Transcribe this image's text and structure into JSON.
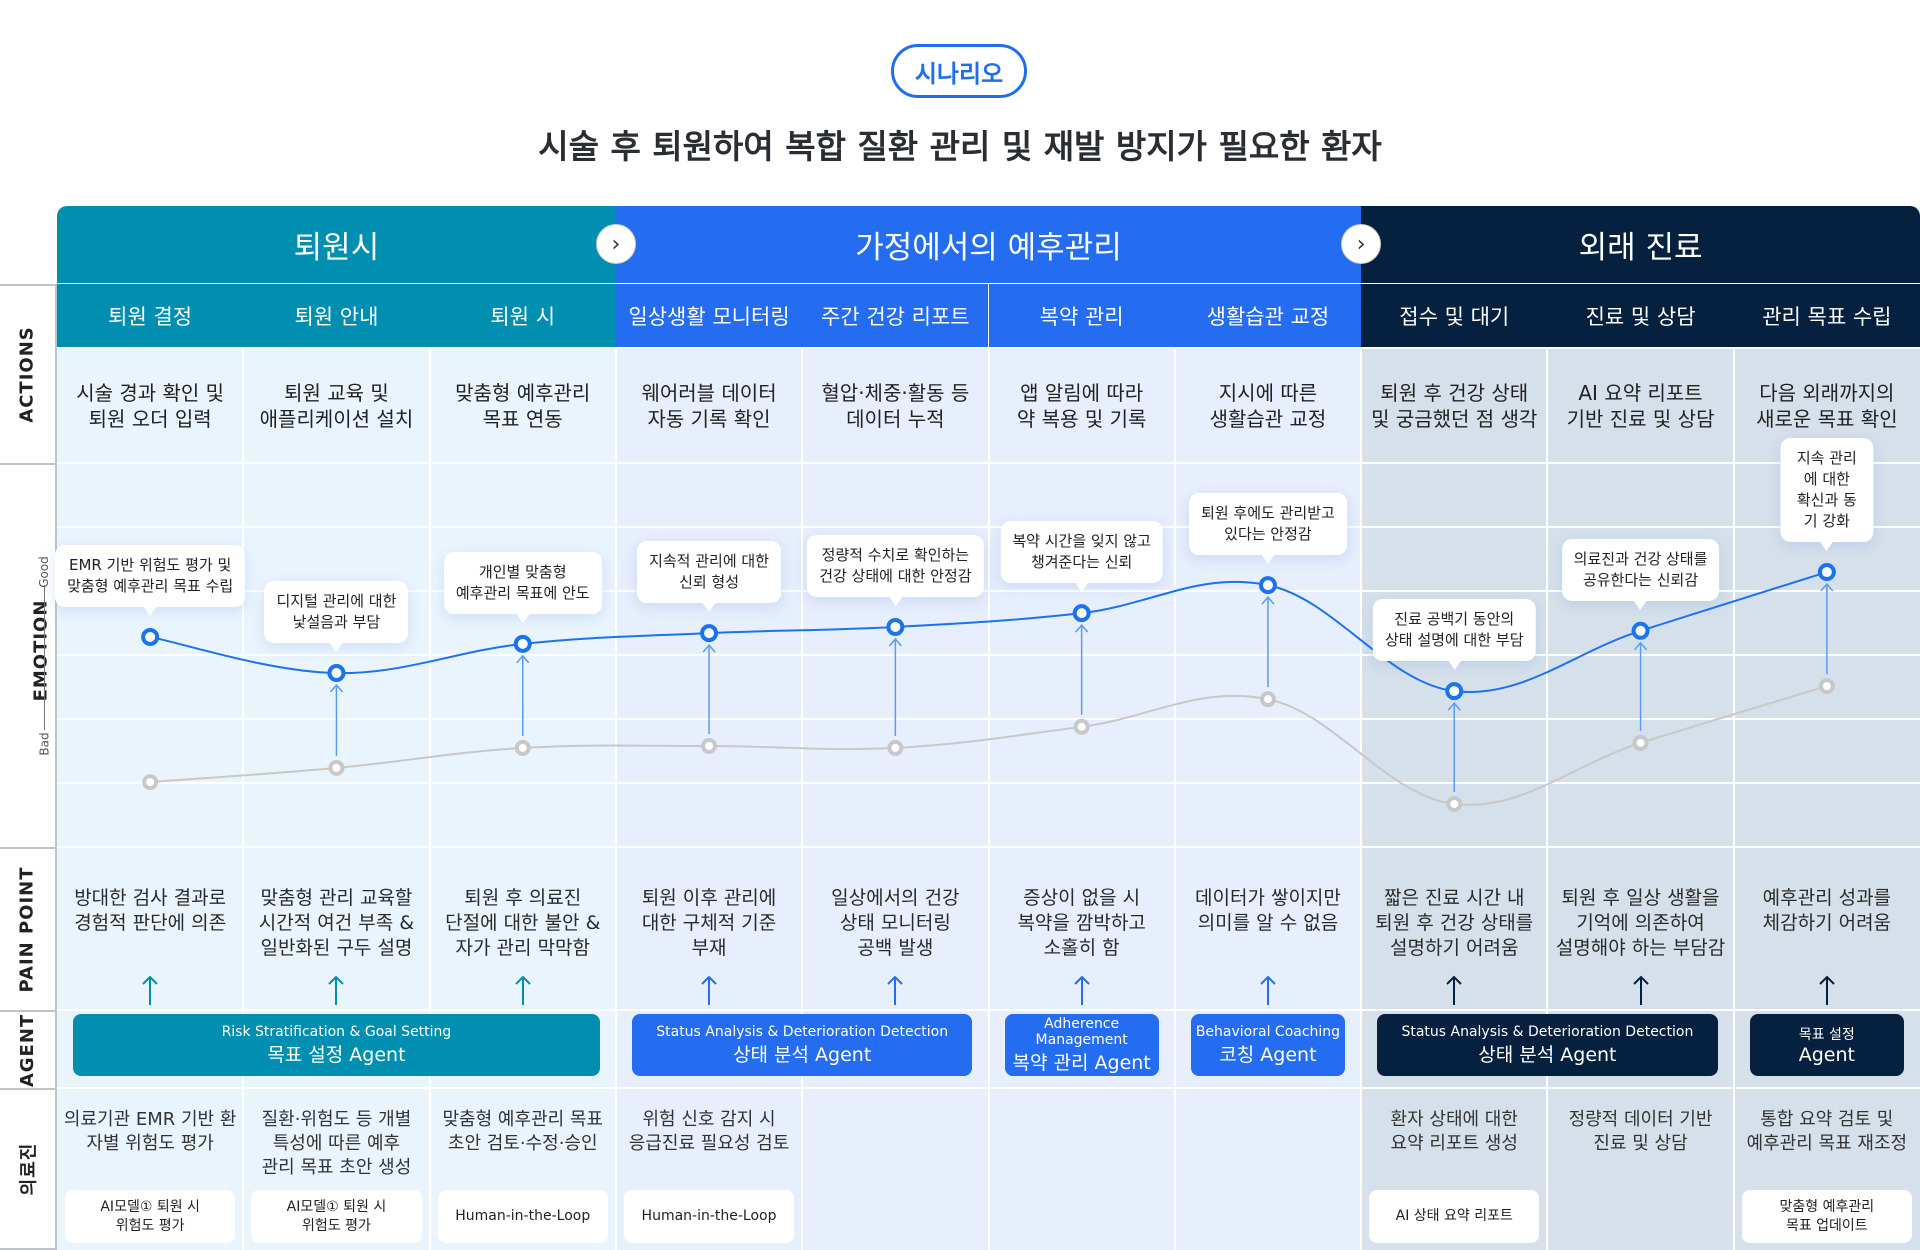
{
  "badge": "시나리오",
  "title": "시술 후 퇴원하여 복합 질환 관리 및 재발 방지가 필요한 환자",
  "colors": {
    "teal": "#008fb0",
    "blue": "#246cf0",
    "navy": "#06203f",
    "teal_bg": "#eaf4fd",
    "blue_bg": "#e7eefc",
    "navy_bg": "#d6e0ea",
    "curve": "#1a73f0",
    "gray_curve": "#c8c8c8"
  },
  "row_labels": {
    "actions": "ACTIONS",
    "emotion": "EMOTION",
    "good": "Good",
    "bad": "Bad",
    "pain": "PAIN POINT",
    "agent": "AGENT",
    "staff": "의료진"
  },
  "phases": [
    {
      "label": "퇴원시",
      "color": "teal",
      "cols": 3
    },
    {
      "label": "가정에서의 예후관리",
      "color": "blue",
      "cols": 4
    },
    {
      "label": "외래 진료",
      "color": "navy",
      "cols": 3
    }
  ],
  "columns": [
    {
      "phase": 0,
      "head": "퇴원 결정",
      "action": "시술 경과 확인 및\n퇴원 오더 입력",
      "emotion": "EMR 기반 위험도 평가 및\n맞춤형  예후관리 목표 수립",
      "emotion_score": 54.7,
      "baseline_score": 16.9,
      "pain": "방대한 검사 결과로\n경험적 판단에 의존",
      "staff": "의료기관 EMR 기반 환\n자별 위험도 평가",
      "chip": "AI모델① 퇴원 시\n위험도 평가"
    },
    {
      "phase": 0,
      "head": "퇴원 안내",
      "action": "퇴원 교육 및\n애플리케이션 설치",
      "emotion": "디지털 관리에 대한\n낯설음과 부담",
      "emotion_score": 45.3,
      "baseline_score": 20.6,
      "pain": "맞춤형 관리 교육할\n시간적 여건 부족 &\n일반화된 구두 설명",
      "staff": "질환·위험도 등 개별\n특성에 따른 예후\n관리 목표 초안 생성",
      "chip": "AI모델① 퇴원 시\n위험도 평가"
    },
    {
      "phase": 0,
      "head": "퇴원 시",
      "action": "맞춤형 예후관리\n목표 연동",
      "emotion": "개인별 맞춤형\n예후관리 목표에 안도",
      "emotion_score": 52.9,
      "baseline_score": 25.8,
      "pain": "퇴원 후 의료진\n단절에 대한 불안 &\n자가 관리 막막함",
      "staff": "맞춤형 예후관리 목표\n초안 검토·수정·승인",
      "chip": "Human-in-the-Loop"
    },
    {
      "phase": 1,
      "head": "일상생활 모니터링",
      "action": "웨어러블 데이터\n자동 기록 확인",
      "emotion": "지속적 관리에 대한\n신뢰 형성",
      "emotion_score": 55.7,
      "baseline_score": 26.3,
      "pain": "퇴원 이후 관리에\n대한 구체적 기준\n부재",
      "staff": "위험 신호 감지 시\n응급진료 필요성 검토",
      "chip": "Human-in-the-Loop"
    },
    {
      "phase": 1,
      "head": "주간 건강 리포트",
      "action": "혈압·체중·활동 등\n데이터 누적",
      "emotion": "정량적 수치로 확인하는\n건강 상태에 대한 안정감",
      "emotion_score": 57.3,
      "baseline_score": 25.8,
      "pain": "일상에서의 건강\n상태 모니터링\n공백 발생",
      "staff": "",
      "chip": ""
    },
    {
      "phase": 1,
      "head": "복약 관리",
      "action": "앱 알림에 따라\n약 복용 및 기록",
      "emotion": "복약 시간을 잊지 않고\n챙겨준다는 신뢰",
      "emotion_score": 60.9,
      "baseline_score": 31.3,
      "pain": "증상이 없을 시\n복약을 깜박하고\n소홀히 함",
      "staff": "",
      "chip": ""
    },
    {
      "phase": 1,
      "head": "생활습관 교정",
      "action": "지시에 따른\n생활습관 교정",
      "emotion": "퇴원 후에도 관리받고\n있다는 안정감",
      "emotion_score": 68.2,
      "baseline_score": 38.5,
      "pain": "데이터가 쌓이지만\n의미를 알 수 없음",
      "staff": "",
      "chip": ""
    },
    {
      "phase": 2,
      "head": "접수 및 대기",
      "action": "퇴원 후 건강 상태\n및 궁금했던 점 생각",
      "emotion": "진료 공백기 동안의\n상태 설명에 대한 부담",
      "emotion_score": 40.6,
      "baseline_score": 11.2,
      "pain": "짧은 진료 시간 내\n퇴원 후 건강 상태를\n설명하기 어려움",
      "staff": "환자 상태에 대한\n요약 리포트 생성",
      "chip": "AI 상태 요약 리포트"
    },
    {
      "phase": 2,
      "head": "진료 및 상담",
      "action": "AI 요약 리포트\n기반 진료 및 상담",
      "emotion": "의료진과 건강 상태를\n공유한다는 신뢰감",
      "emotion_score": 56.3,
      "baseline_score": 27.1,
      "pain": "퇴원 후 일상 생활을\n기억에 의존하여\n설명해야 하는 부담감",
      "staff": "정량적 데이터 기반\n진료 및 상담",
      "chip": ""
    },
    {
      "phase": 2,
      "head": "관리 목표 수립",
      "action": "다음 외래까지의\n새로운 목표 확인",
      "emotion": "지속 관리에 대한\n확신과 동기 강화",
      "emotion_score": 71.6,
      "baseline_score": 41.9,
      "pain": "예후관리 성과를\n체감하기 어려움",
      "staff": "통합 요약 검토 및\n예후관리 목표 재조정",
      "chip": "맞춤형 예후관리\n목표 업데이트"
    }
  ],
  "agents": [
    {
      "en": "Risk Stratification & Goal Setting",
      "ko": "목표 설정 Agent",
      "color": "teal",
      "from": 0,
      "to": 2
    },
    {
      "en": "Status Analysis & Deterioration Detection",
      "ko": "상태 분석 Agent",
      "color": "blue",
      "from": 3,
      "to": 4
    },
    {
      "en": "Adherence Management",
      "ko": "복약 관리 Agent",
      "color": "blue",
      "from": 5,
      "to": 5
    },
    {
      "en": "Behavioral Coaching",
      "ko": "코칭 Agent",
      "color": "blue",
      "from": 6,
      "to": 6
    },
    {
      "en": "Status Analysis & Deterioration Detection",
      "ko": "상태 분석 Agent",
      "color": "navy",
      "from": 7,
      "to": 8
    },
    {
      "en": "목표 설정",
      "ko": "Agent",
      "color": "navy",
      "from": 9,
      "to": 9
    }
  ]
}
